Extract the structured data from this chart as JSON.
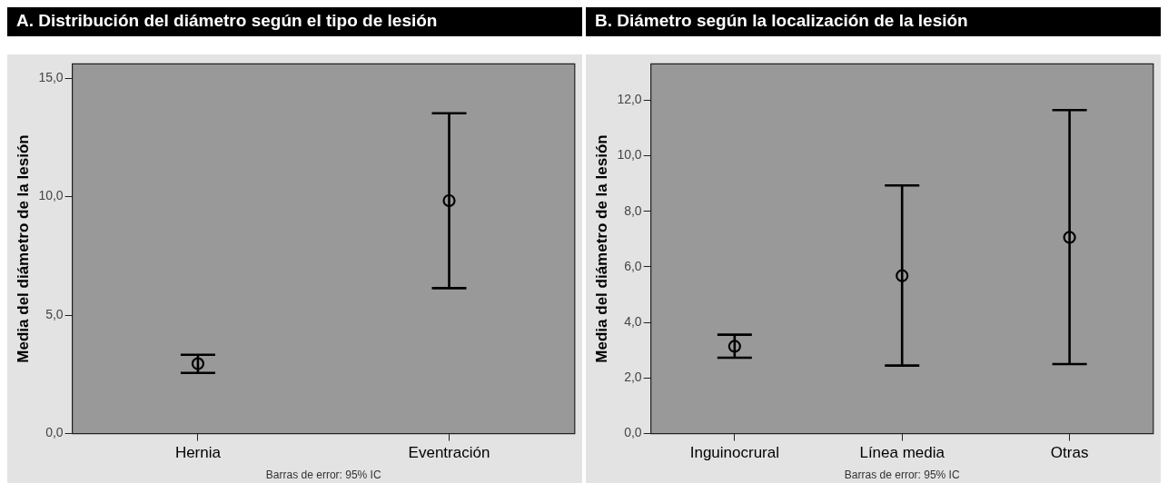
{
  "chart_data": [
    {
      "type": "scatter",
      "title": "A. Distribución del diámetro según el tipo de lesión",
      "ylabel": "Media del diámetro de la lesión",
      "categories": [
        "Hernia",
        "Eventración"
      ],
      "values": [
        2.95,
        9.83
      ],
      "errors": [
        [
          2.56,
          3.33
        ],
        [
          6.14,
          13.52
        ]
      ],
      "color": "#000000",
      "marker": "circle",
      "ylim": [
        0,
        15.6
      ],
      "yticks": [
        {
          "value": 0,
          "label": "0,0"
        },
        {
          "value": 5,
          "label": "5,0"
        },
        {
          "value": 10,
          "label": "10,0"
        },
        {
          "value": 15,
          "label": "15,0"
        }
      ],
      "grid": false,
      "legend": false,
      "annotations": [
        "Barras de error: 95% IC"
      ]
    },
    {
      "type": "scatter",
      "title": "B. Diámetro según la localización de la lesión",
      "ylabel": "Media del diámetro de la lesión",
      "categories": [
        "Inguinocrural",
        "Línea media",
        "Otras"
      ],
      "values": [
        3.14,
        5.68,
        7.06
      ],
      "errors": [
        [
          2.73,
          3.56
        ],
        [
          2.45,
          8.93
        ],
        [
          2.5,
          11.64
        ]
      ],
      "color": "#000000",
      "marker": "circle",
      "ylim": [
        0,
        13.3
      ],
      "yticks": [
        {
          "value": 0,
          "label": "0,0"
        },
        {
          "value": 2,
          "label": "2,0"
        },
        {
          "value": 4,
          "label": "4,0"
        },
        {
          "value": 6,
          "label": "6,0"
        },
        {
          "value": 8,
          "label": "8,0"
        },
        {
          "value": 10,
          "label": "10,0"
        },
        {
          "value": 12,
          "label": "12,0"
        }
      ],
      "grid": false,
      "legend": false,
      "annotations": [
        "Barras de error: 95% IC"
      ]
    }
  ]
}
